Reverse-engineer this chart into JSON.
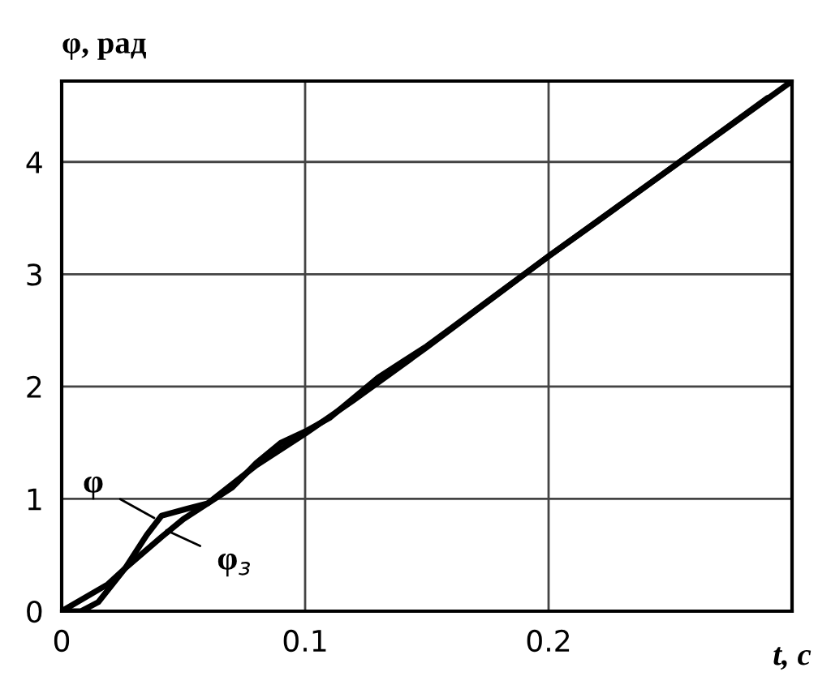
{
  "chart_data": {
    "type": "line",
    "xlabel": "t, c",
    "ylabel": "φ, рад",
    "xlim": [
      0,
      0.3
    ],
    "ylim": [
      0,
      4.72
    ],
    "xticks": [
      0,
      0.1,
      0.2
    ],
    "yticks": [
      0,
      1,
      2,
      3,
      4
    ],
    "grid": true,
    "series": [
      {
        "color": "#000000",
        "x": [
          0,
          0.008,
          0.015,
          0.026,
          0.035,
          0.041,
          0.051,
          0.06,
          0.07,
          0.08,
          0.09,
          0.1,
          0.11,
          0.12,
          0.13,
          0.14,
          0.15,
          0.16,
          0.18,
          0.2,
          0.22,
          0.25,
          0.3
        ],
        "values": [
          0,
          0,
          0.08,
          0.38,
          0.68,
          0.85,
          0.91,
          0.96,
          1.1,
          1.32,
          1.5,
          1.6,
          1.72,
          1.9,
          2.08,
          2.22,
          2.36,
          2.52,
          2.84,
          3.16,
          3.47,
          3.94,
          4.72
        ]
      },
      {
        "color": "#000000",
        "x": [
          0,
          0.019,
          0.026,
          0.041,
          0.05,
          0.06,
          0.08,
          0.1,
          0.12,
          0.15,
          0.2,
          0.25,
          0.29
        ],
        "values": [
          0,
          0.24,
          0.38,
          0.66,
          0.82,
          0.96,
          1.3,
          1.58,
          1.88,
          2.35,
          3.16,
          3.94,
          4.57
        ]
      }
    ],
    "annotations": [
      {
        "text": "φ",
        "x": 0.038,
        "y": 0.83
      },
      {
        "text": "φ$_{з}$",
        "x": 0.043,
        "y": 0.72
      }
    ]
  }
}
